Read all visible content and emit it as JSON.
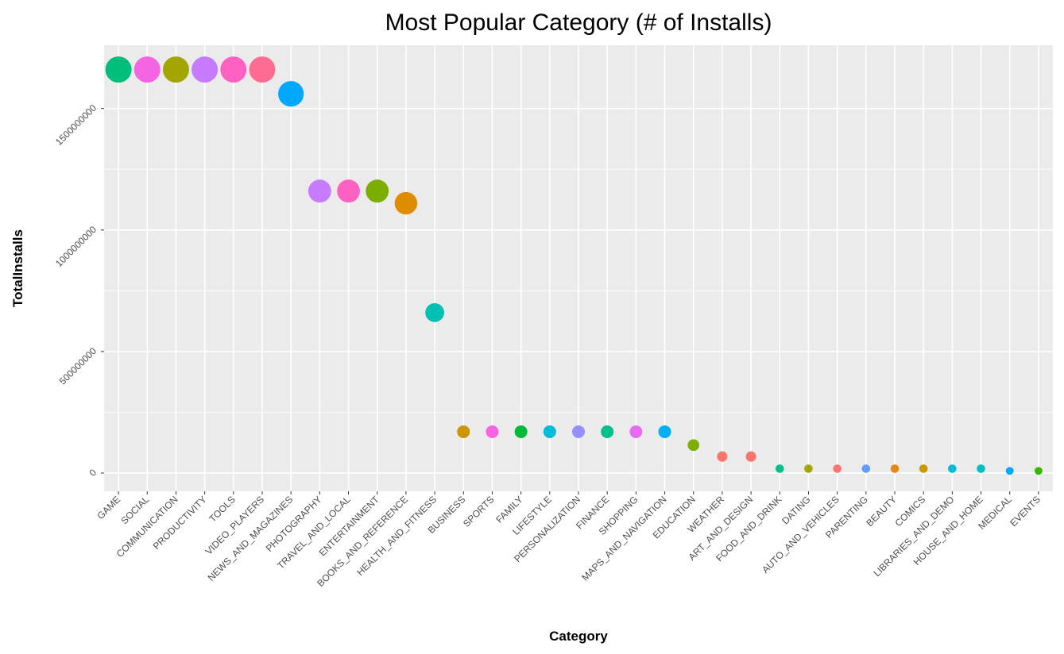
{
  "chart_data": {
    "type": "scatter",
    "title": "Most Popular Category (# of Installs)",
    "xlabel": "Category",
    "ylabel": "TotalInstalls",
    "ylim": [
      -75000000,
      1760000000
    ],
    "yticks": [
      0,
      500000000,
      1000000000,
      1500000000
    ],
    "ytick_labels": [
      "0",
      "500000000",
      "1000000000",
      "1500000000"
    ],
    "grid": true,
    "legend": "none",
    "size_encodes": "TotalInstalls",
    "panel_background": "#ebebeb",
    "grid_color": "#ffffff",
    "points": [
      {
        "category": "GAME",
        "y": 1660000000,
        "color": "#00BF7D"
      },
      {
        "category": "SOCIAL",
        "y": 1660000000,
        "color": "#F564E3"
      },
      {
        "category": "COMMUNICATION",
        "y": 1660000000,
        "color": "#A3A500"
      },
      {
        "category": "PRODUCTIVITY",
        "y": 1660000000,
        "color": "#C77CFF"
      },
      {
        "category": "TOOLS",
        "y": 1660000000,
        "color": "#FF61C3"
      },
      {
        "category": "VIDEO_PLAYERS",
        "y": 1660000000,
        "color": "#FF6C91"
      },
      {
        "category": "NEWS_AND_MAGAZINES",
        "y": 1560000000,
        "color": "#00A9FF"
      },
      {
        "category": "PHOTOGRAPHY",
        "y": 1160000000,
        "color": "#C77CFF"
      },
      {
        "category": "TRAVEL_AND_LOCAL",
        "y": 1160000000,
        "color": "#FF61C3"
      },
      {
        "category": "ENTERTAINMENT",
        "y": 1160000000,
        "color": "#7CAE00"
      },
      {
        "category": "BOOKS_AND_REFERENCE",
        "y": 1110000000,
        "color": "#DE8C00"
      },
      {
        "category": "HEALTH_AND_FITNESS",
        "y": 660000000,
        "color": "#00BFB3"
      },
      {
        "category": "BUSINESS",
        "y": 170000000,
        "color": "#CD9600"
      },
      {
        "category": "SPORTS",
        "y": 170000000,
        "color": "#F564E3"
      },
      {
        "category": "FAMILY",
        "y": 170000000,
        "color": "#00BA38"
      },
      {
        "category": "LIFESTYLE",
        "y": 170000000,
        "color": "#00BCD8"
      },
      {
        "category": "PERSONALIZATION",
        "y": 170000000,
        "color": "#9590FF"
      },
      {
        "category": "FINANCE",
        "y": 170000000,
        "color": "#00C08B"
      },
      {
        "category": "SHOPPING",
        "y": 170000000,
        "color": "#E76BF3"
      },
      {
        "category": "MAPS_AND_NAVIGATION",
        "y": 170000000,
        "color": "#00B0F6"
      },
      {
        "category": "EDUCATION",
        "y": 115000000,
        "color": "#7CAE00"
      },
      {
        "category": "WEATHER",
        "y": 68000000,
        "color": "#F8766D"
      },
      {
        "category": "ART_AND_DESIGN",
        "y": 68000000,
        "color": "#F8766D"
      },
      {
        "category": "FOOD_AND_DRINK",
        "y": 18000000,
        "color": "#00C08B"
      },
      {
        "category": "DATING",
        "y": 18000000,
        "color": "#A3A500"
      },
      {
        "category": "AUTO_AND_VEHICLES",
        "y": 18000000,
        "color": "#F8766D"
      },
      {
        "category": "PARENTING",
        "y": 18000000,
        "color": "#619CFF"
      },
      {
        "category": "BEAUTY",
        "y": 18000000,
        "color": "#E68613"
      },
      {
        "category": "COMICS",
        "y": 18000000,
        "color": "#CD9600"
      },
      {
        "category": "LIBRARIES_AND_DEMO",
        "y": 18000000,
        "color": "#00BCD8"
      },
      {
        "category": "HOUSE_AND_HOME",
        "y": 18000000,
        "color": "#00BFC4"
      },
      {
        "category": "MEDICAL",
        "y": 9000000,
        "color": "#00A9FF"
      },
      {
        "category": "EVENTS",
        "y": 9000000,
        "color": "#39B600"
      }
    ]
  }
}
